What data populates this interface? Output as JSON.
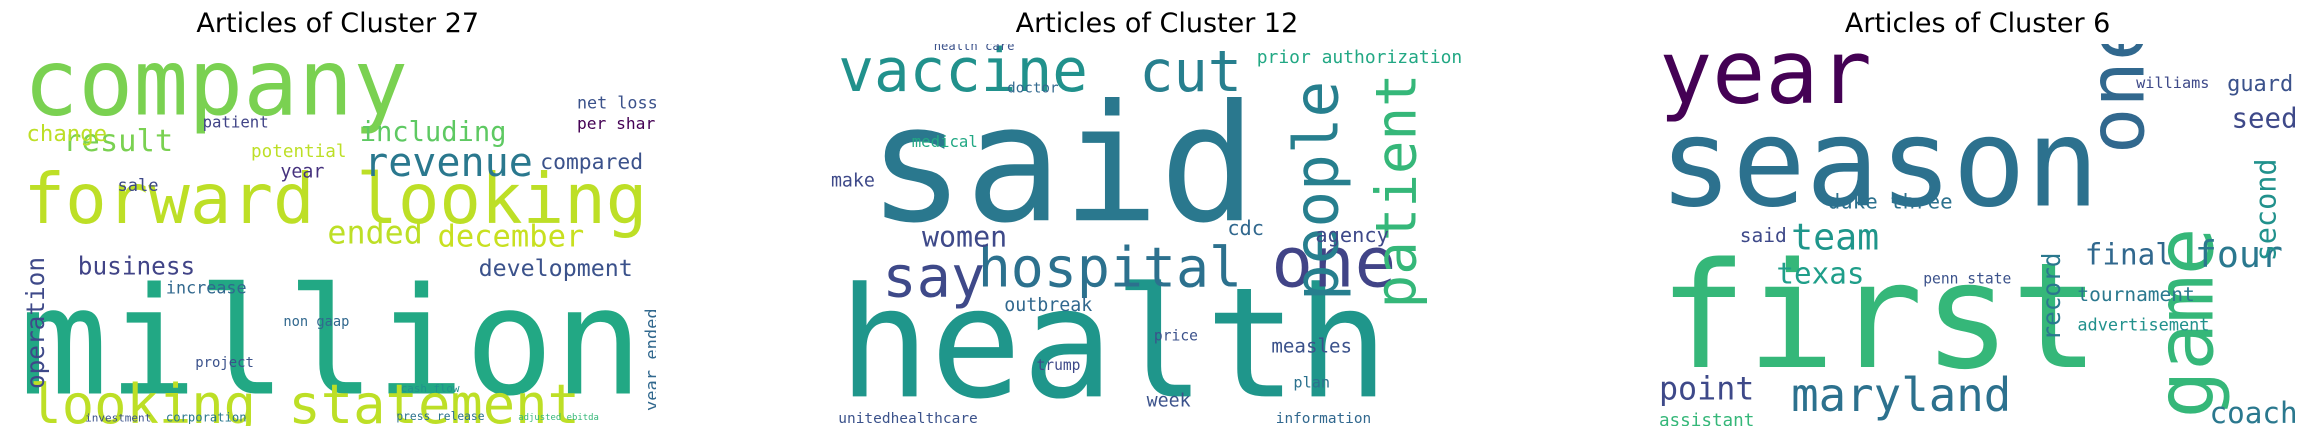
{
  "panels": [
    {
      "title": "Articles of Cluster 27",
      "words": [
        "company",
        "forward looking",
        "million",
        "looking statement",
        "result",
        "revenue",
        "including",
        "net loss",
        "per share",
        "ended",
        "december",
        "development",
        "business",
        "increase",
        "change",
        "compared",
        "patient",
        "potential",
        "sale",
        "year",
        "non gaap",
        "project",
        "operation",
        "year ended",
        "press release",
        "adjusted ebitda",
        "cash flow",
        "investment",
        "corporation"
      ]
    },
    {
      "title": "Articles of Cluster 12",
      "words": [
        "vaccine",
        "said",
        "health",
        "cut",
        "say",
        "hospital",
        "one",
        "people",
        "patient",
        "prior authorization",
        "women",
        "cdc",
        "outbreak",
        "measles",
        "trump",
        "unitedhealthcare",
        "information",
        "plan",
        "week",
        "health care",
        "medical",
        "make",
        "agency",
        "price",
        "doctor"
      ]
    },
    {
      "title": "Articles of Cluster 6",
      "words": [
        "year",
        "season",
        "first",
        "one",
        "game",
        "final",
        "four",
        "team",
        "texas",
        "duke three",
        "seed",
        "guard",
        "tournament",
        "maryland",
        "point",
        "coach",
        "advertisement",
        "penn state",
        "assistant",
        "said",
        "record",
        "second",
        "williams"
      ]
    }
  ]
}
